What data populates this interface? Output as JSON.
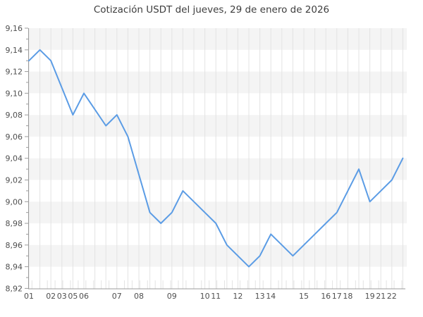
{
  "title": "Cotización USDT del jueves, 29 de enero de 2026",
  "chart_data": {
    "type": "line",
    "title": "Cotización USDT del jueves, 29 de enero de 2026",
    "legend": "none",
    "series": [
      {
        "name": "USDT",
        "color": "#5b9ce5",
        "values": [
          9.13,
          9.14,
          9.13,
          9.105,
          9.08,
          9.1,
          9.085,
          9.07,
          9.08,
          9.06,
          9.025,
          8.99,
          8.98,
          8.99,
          9.01,
          9.0,
          8.99,
          8.98,
          8.96,
          8.95,
          8.94,
          8.95,
          8.97,
          8.96,
          8.95,
          8.96,
          8.97,
          8.98,
          8.99,
          9.01,
          9.03,
          9.0,
          9.01,
          9.02,
          9.04
        ]
      }
    ],
    "x_axis": {
      "type": "category-hours",
      "total_slots": 35,
      "tick_labels": [
        "01",
        "02",
        "03",
        "05",
        "06",
        "07",
        "08",
        "09",
        "10",
        "11",
        "12",
        "13",
        "14",
        "15",
        "16",
        "17",
        "18",
        "19",
        "21",
        "22"
      ],
      "tick_slots": [
        0,
        2,
        3,
        4,
        5,
        8,
        10,
        13,
        16,
        17,
        19,
        21,
        22,
        25,
        27,
        28,
        29,
        31,
        32,
        33
      ]
    },
    "y_axis": {
      "min": 8.92,
      "max": 9.16,
      "major_step": 0.02,
      "minor_step": 0.01,
      "decimal_separator": ",",
      "tick_labels": [
        "9,16",
        "9,14",
        "9,12",
        "9,10",
        "9,08",
        "9,06",
        "9,04",
        "9,02",
        "9,00",
        "8,98",
        "8,96",
        "8,94",
        "8,92"
      ]
    },
    "grid": {
      "vertical_gridline_per_point": true,
      "horizontal_zebra_bands": true
    }
  },
  "styles": {
    "background": "#ffffff",
    "band_fill": "#f4f4f4",
    "gridline": "#e3e3e3",
    "axis": "#9b9b9b",
    "tick": "#9b9b9b",
    "label_color": "#4f4f4f",
    "title_color": "#3d3d3d",
    "line_color": "#5b9ce5",
    "line_width": 2
  }
}
